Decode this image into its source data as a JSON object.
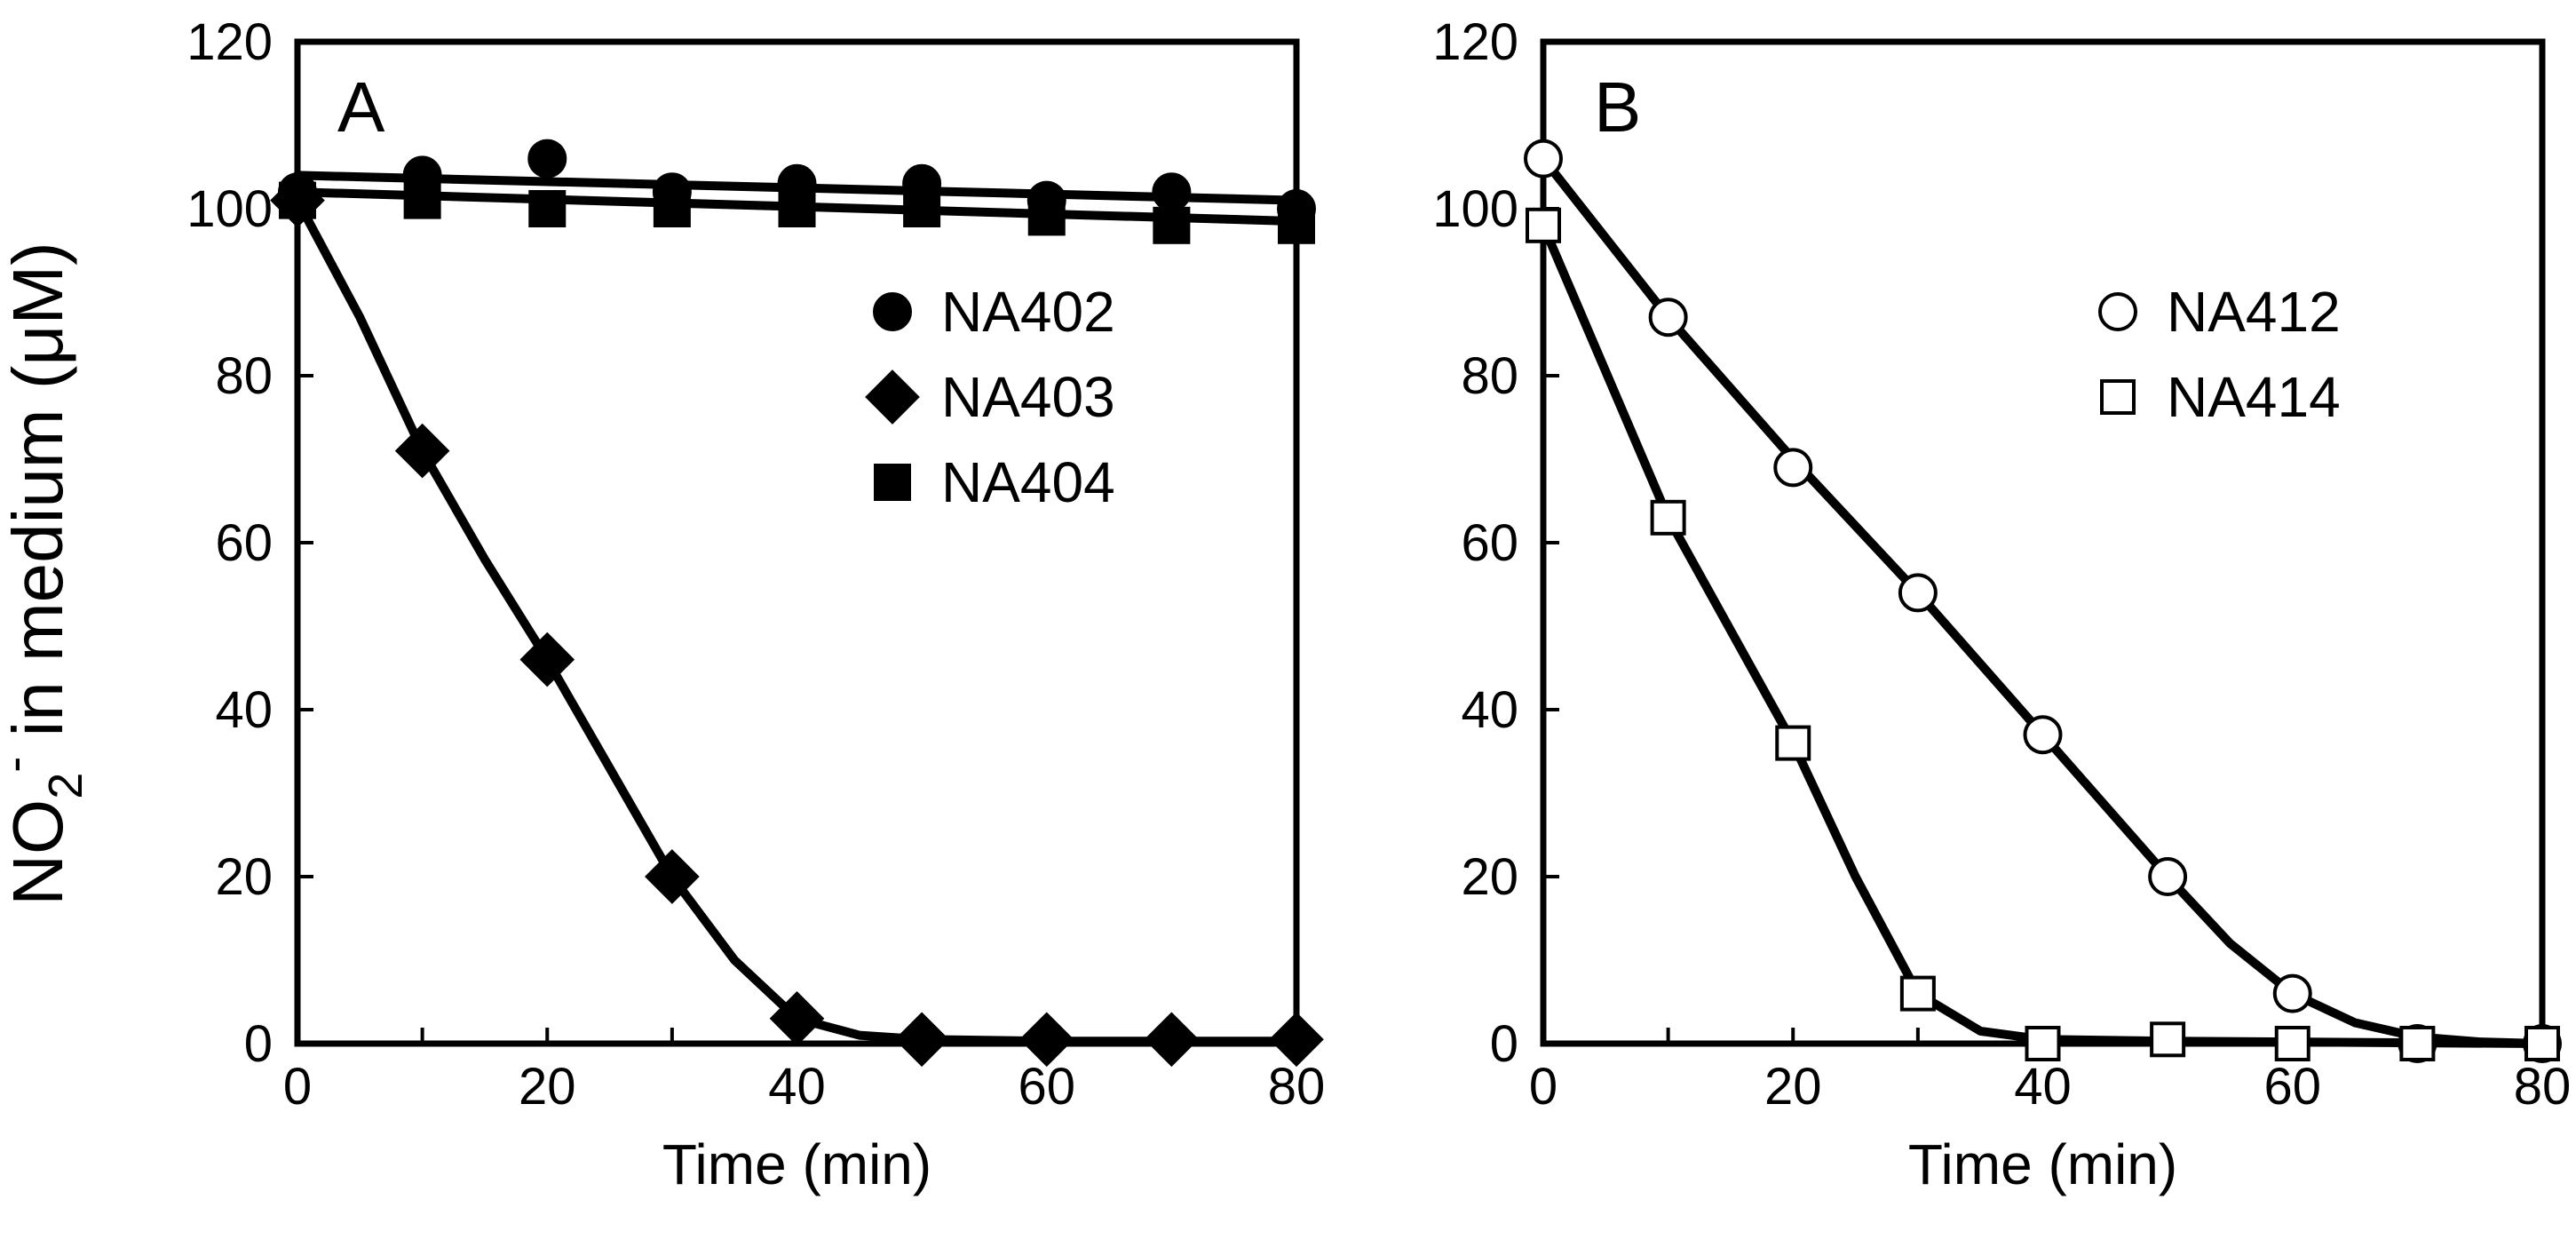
{
  "figure": {
    "ylabel": {
      "main": "NO",
      "sub": "2",
      "sup": "-",
      "rest": " in medium (μM)"
    }
  },
  "colors": {
    "ink": "#000000",
    "paper": "#ffffff"
  },
  "chart_data": [
    {
      "type": "line",
      "panel_label": "A",
      "xlabel": "Time (min)",
      "ylabel": "NO2- in medium (μM)",
      "xlim": [
        0,
        80
      ],
      "ylim": [
        0,
        120
      ],
      "xticks": [
        0,
        20,
        40,
        60,
        80
      ],
      "yticks": [
        0,
        20,
        40,
        60,
        80,
        100,
        120
      ],
      "legend_position": "right",
      "series": [
        {
          "name": "NA402",
          "marker": "circle",
          "filled": true,
          "x": [
            0,
            10,
            20,
            30,
            40,
            50,
            60,
            70,
            80
          ],
          "y": [
            102,
            104,
            106,
            102,
            103,
            103,
            101,
            102,
            100
          ],
          "curve": [
            [
              0,
              104
            ],
            [
              80,
              101
            ]
          ]
        },
        {
          "name": "NA403",
          "marker": "diamond",
          "filled": true,
          "x": [
            0,
            10,
            20,
            30,
            40,
            50,
            60,
            70,
            80
          ],
          "y": [
            101,
            71,
            46,
            20,
            3,
            0.5,
            0.5,
            0.5,
            0.5
          ],
          "curve": [
            [
              0,
              101
            ],
            [
              5,
              87
            ],
            [
              10,
              71
            ],
            [
              15,
              58
            ],
            [
              20,
              46
            ],
            [
              25,
              33
            ],
            [
              30,
              20
            ],
            [
              35,
              10
            ],
            [
              40,
              3
            ],
            [
              45,
              1
            ],
            [
              50,
              0.5
            ],
            [
              60,
              0.3
            ],
            [
              70,
              0.3
            ],
            [
              80,
              0.3
            ]
          ]
        },
        {
          "name": "NA404",
          "marker": "square",
          "filled": true,
          "x": [
            0,
            10,
            20,
            30,
            40,
            50,
            60,
            70,
            80
          ],
          "y": [
            101,
            101,
            100,
            100,
            100,
            100,
            99,
            98,
            98
          ],
          "curve": [
            [
              0,
              102
            ],
            [
              80,
              98.5
            ]
          ]
        }
      ]
    },
    {
      "type": "line",
      "panel_label": "B",
      "xlabel": "Time (min)",
      "ylabel": "NO2- in medium (μM)",
      "xlim": [
        0,
        80
      ],
      "ylim": [
        0,
        120
      ],
      "xticks": [
        0,
        20,
        40,
        60,
        80
      ],
      "yticks": [
        0,
        20,
        40,
        60,
        80,
        100,
        120
      ],
      "legend_position": "right",
      "series": [
        {
          "name": "NA412",
          "marker": "circle",
          "filled": false,
          "x": [
            0,
            10,
            20,
            30,
            40,
            50,
            60,
            70,
            80
          ],
          "y": [
            106,
            87,
            69,
            54,
            37,
            20,
            6,
            0,
            0
          ],
          "curve": [
            [
              0,
              106
            ],
            [
              10,
              87
            ],
            [
              20,
              70
            ],
            [
              30,
              54
            ],
            [
              40,
              37
            ],
            [
              50,
              20
            ],
            [
              55,
              12
            ],
            [
              60,
              6
            ],
            [
              65,
              2.5
            ],
            [
              70,
              0.8
            ],
            [
              75,
              0.2
            ],
            [
              80,
              0
            ]
          ]
        },
        {
          "name": "NA414",
          "marker": "square",
          "filled": false,
          "x": [
            0,
            10,
            20,
            30,
            40,
            50,
            60,
            70,
            80
          ],
          "y": [
            98,
            63,
            36,
            6,
            0,
            0.5,
            0,
            0,
            0
          ],
          "curve": [
            [
              0,
              98
            ],
            [
              10,
              63
            ],
            [
              20,
              36
            ],
            [
              25,
              20
            ],
            [
              30,
              6
            ],
            [
              35,
              1.5
            ],
            [
              40,
              0.5
            ],
            [
              50,
              0.3
            ],
            [
              60,
              0.2
            ],
            [
              70,
              0.1
            ],
            [
              80,
              0
            ]
          ]
        }
      ]
    }
  ]
}
